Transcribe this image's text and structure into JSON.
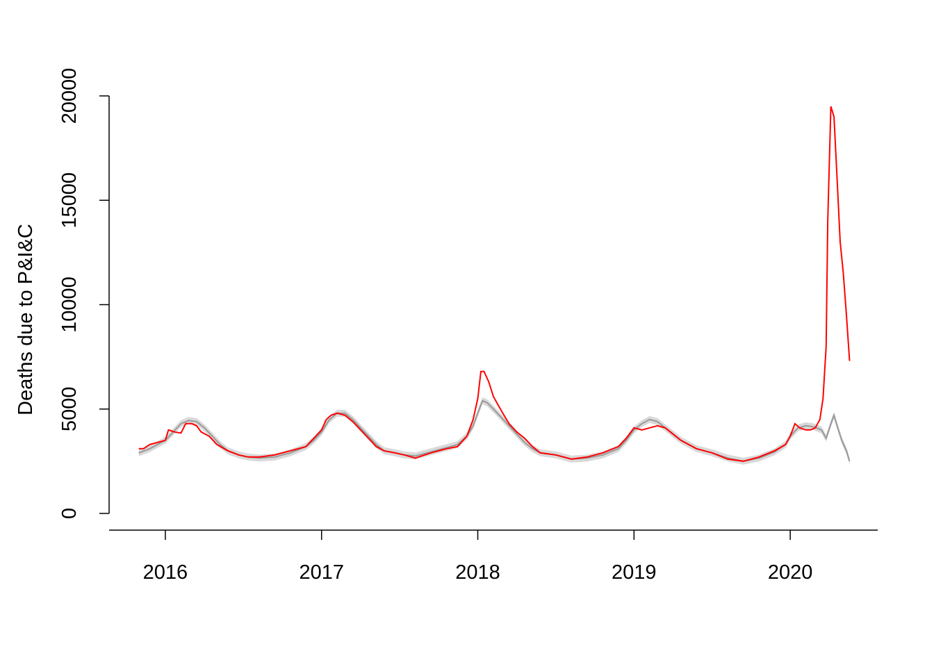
{
  "chart_data": {
    "type": "line",
    "title": "",
    "xlabel": "",
    "ylabel": "Deaths due to P&I&C",
    "xlim": [
      2015.64,
      2020.56
    ],
    "ylim": [
      -800,
      20600
    ],
    "x_ticks": [
      2016,
      2017,
      2018,
      2019,
      2020
    ],
    "x_tick_labels": [
      "2016",
      "2017",
      "2018",
      "2019",
      "2020"
    ],
    "y_ticks": [
      0,
      5000,
      10000,
      15000,
      20000
    ],
    "y_tick_labels": [
      "0",
      "5000",
      "10000",
      "15000",
      "20000"
    ],
    "grid": false,
    "legend": "none",
    "colors": {
      "observed": "#ff0000",
      "expected": "#999999",
      "band": "#d9d9d9"
    },
    "series": [
      {
        "role": "observed",
        "color": "#ff0000",
        "x": [
          2015.83,
          2015.86,
          2015.9,
          2015.95,
          2016.0,
          2016.02,
          2016.06,
          2016.1,
          2016.13,
          2016.17,
          2016.2,
          2016.23,
          2016.28,
          2016.33,
          2016.4,
          2016.47,
          2016.53,
          2016.6,
          2016.7,
          2016.8,
          2016.9,
          2016.95,
          2017.0,
          2017.03,
          2017.06,
          2017.1,
          2017.15,
          2017.2,
          2017.25,
          2017.3,
          2017.35,
          2017.4,
          2017.47,
          2017.53,
          2017.6,
          2017.7,
          2017.8,
          2017.87,
          2017.93,
          2017.97,
          2018.0,
          2018.02,
          2018.04,
          2018.07,
          2018.1,
          2018.13,
          2018.16,
          2018.2,
          2018.25,
          2018.3,
          2018.35,
          2018.4,
          2018.5,
          2018.6,
          2018.7,
          2018.8,
          2018.9,
          2018.95,
          2019.0,
          2019.05,
          2019.1,
          2019.15,
          2019.2,
          2019.25,
          2019.3,
          2019.4,
          2019.5,
          2019.6,
          2019.7,
          2019.8,
          2019.9,
          2019.97,
          2020.0,
          2020.03,
          2020.06,
          2020.1,
          2020.13,
          2020.16,
          2020.19,
          2020.21,
          2020.23,
          2020.24,
          2020.26,
          2020.28,
          2020.3,
          2020.32,
          2020.34,
          2020.36,
          2020.38
        ],
        "y": [
          3100,
          3100,
          3300,
          3400,
          3500,
          4000,
          3900,
          3850,
          4300,
          4300,
          4200,
          3900,
          3700,
          3300,
          3000,
          2800,
          2700,
          2700,
          2800,
          3000,
          3200,
          3600,
          4000,
          4500,
          4700,
          4800,
          4700,
          4400,
          4000,
          3600,
          3200,
          3000,
          2900,
          2800,
          2650,
          2900,
          3100,
          3200,
          3700,
          4500,
          5500,
          6800,
          6800,
          6300,
          5600,
          5200,
          4800,
          4300,
          3900,
          3600,
          3200,
          2900,
          2800,
          2600,
          2700,
          2900,
          3200,
          3600,
          4100,
          4000,
          4100,
          4200,
          4100,
          3800,
          3500,
          3100,
          2900,
          2600,
          2500,
          2700,
          3000,
          3300,
          3700,
          4300,
          4100,
          4000,
          4000,
          4100,
          4500,
          5500,
          8000,
          14000,
          19500,
          19000,
          16000,
          13000,
          11500,
          9500,
          7300
        ]
      },
      {
        "role": "expected",
        "color": "#999999",
        "x": [
          2015.83,
          2015.9,
          2015.95,
          2016.0,
          2016.05,
          2016.1,
          2016.15,
          2016.2,
          2016.25,
          2016.3,
          2016.35,
          2016.4,
          2016.47,
          2016.53,
          2016.6,
          2016.7,
          2016.8,
          2016.9,
          2016.95,
          2017.0,
          2017.05,
          2017.1,
          2017.15,
          2017.2,
          2017.25,
          2017.3,
          2017.35,
          2017.4,
          2017.47,
          2017.53,
          2017.6,
          2017.7,
          2017.8,
          2017.87,
          2017.93,
          2017.97,
          2018.0,
          2018.03,
          2018.06,
          2018.1,
          2018.15,
          2018.2,
          2018.25,
          2018.3,
          2018.35,
          2018.4,
          2018.5,
          2018.6,
          2018.7,
          2018.8,
          2018.9,
          2018.95,
          2019.0,
          2019.05,
          2019.1,
          2019.15,
          2019.2,
          2019.25,
          2019.3,
          2019.4,
          2019.5,
          2019.6,
          2019.7,
          2019.8,
          2019.9,
          2019.97,
          2020.0,
          2020.05,
          2020.1,
          2020.15,
          2020.2,
          2020.23,
          2020.26,
          2020.28,
          2020.3,
          2020.33,
          2020.36,
          2020.38
        ],
        "y": [
          2900,
          3100,
          3300,
          3500,
          3900,
          4300,
          4450,
          4400,
          4100,
          3700,
          3300,
          3000,
          2800,
          2700,
          2650,
          2700,
          2900,
          3200,
          3500,
          3900,
          4500,
          4800,
          4800,
          4500,
          4100,
          3700,
          3300,
          3000,
          2900,
          2800,
          2750,
          2950,
          3150,
          3300,
          3700,
          4200,
          4800,
          5400,
          5300,
          5000,
          4600,
          4200,
          3800,
          3400,
          3100,
          2900,
          2800,
          2600,
          2650,
          2800,
          3100,
          3500,
          4000,
          4300,
          4500,
          4400,
          4100,
          3800,
          3500,
          3100,
          2900,
          2650,
          2500,
          2650,
          2950,
          3300,
          3700,
          4100,
          4200,
          4150,
          4000,
          3600,
          4300,
          4700,
          4200,
          3500,
          3000,
          2500
        ]
      }
    ]
  }
}
